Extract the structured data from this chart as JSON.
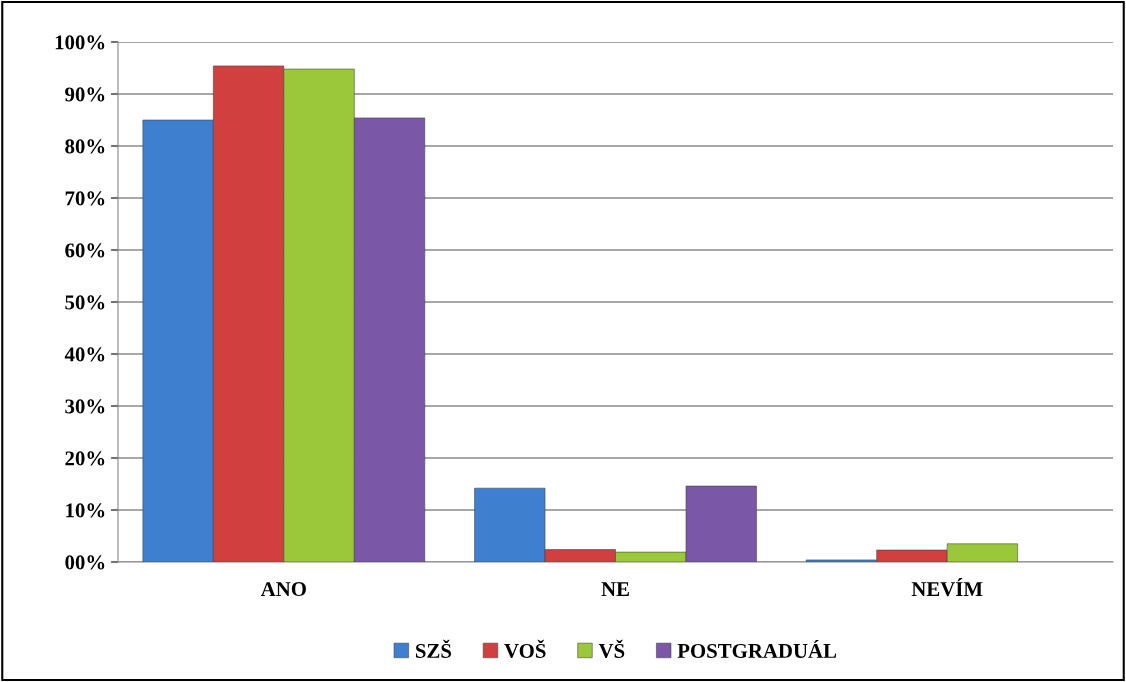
{
  "chart_data": {
    "type": "bar",
    "categories": [
      "ANO",
      "NE",
      "NEVÍM"
    ],
    "series": [
      {
        "name": "SZŠ",
        "color": "#3f7fcf",
        "values": [
          85,
          14.2,
          0.4
        ]
      },
      {
        "name": "VOŠ",
        "color": "#d13f3f",
        "values": [
          95.4,
          2.4,
          2.3
        ]
      },
      {
        "name": "VŠ",
        "color": "#9bc83b",
        "values": [
          94.8,
          1.9,
          3.5
        ]
      },
      {
        "name": "POSTGRADUÁL",
        "color": "#7b57a8",
        "values": [
          85.4,
          14.6,
          null
        ]
      }
    ],
    "ylim": [
      0,
      100
    ],
    "yticks": [
      {
        "value": 0,
        "label": "00%"
      },
      {
        "value": 10,
        "label": "10%"
      },
      {
        "value": 20,
        "label": "20%"
      },
      {
        "value": 30,
        "label": "30%"
      },
      {
        "value": 40,
        "label": "40%"
      },
      {
        "value": 50,
        "label": "50%"
      },
      {
        "value": 60,
        "label": "60%"
      },
      {
        "value": 70,
        "label": "70%"
      },
      {
        "value": 80,
        "label": "80%"
      },
      {
        "value": 90,
        "label": "90%"
      },
      {
        "value": 100,
        "label": "100%"
      }
    ],
    "grid": "y",
    "legend": "bottom"
  }
}
